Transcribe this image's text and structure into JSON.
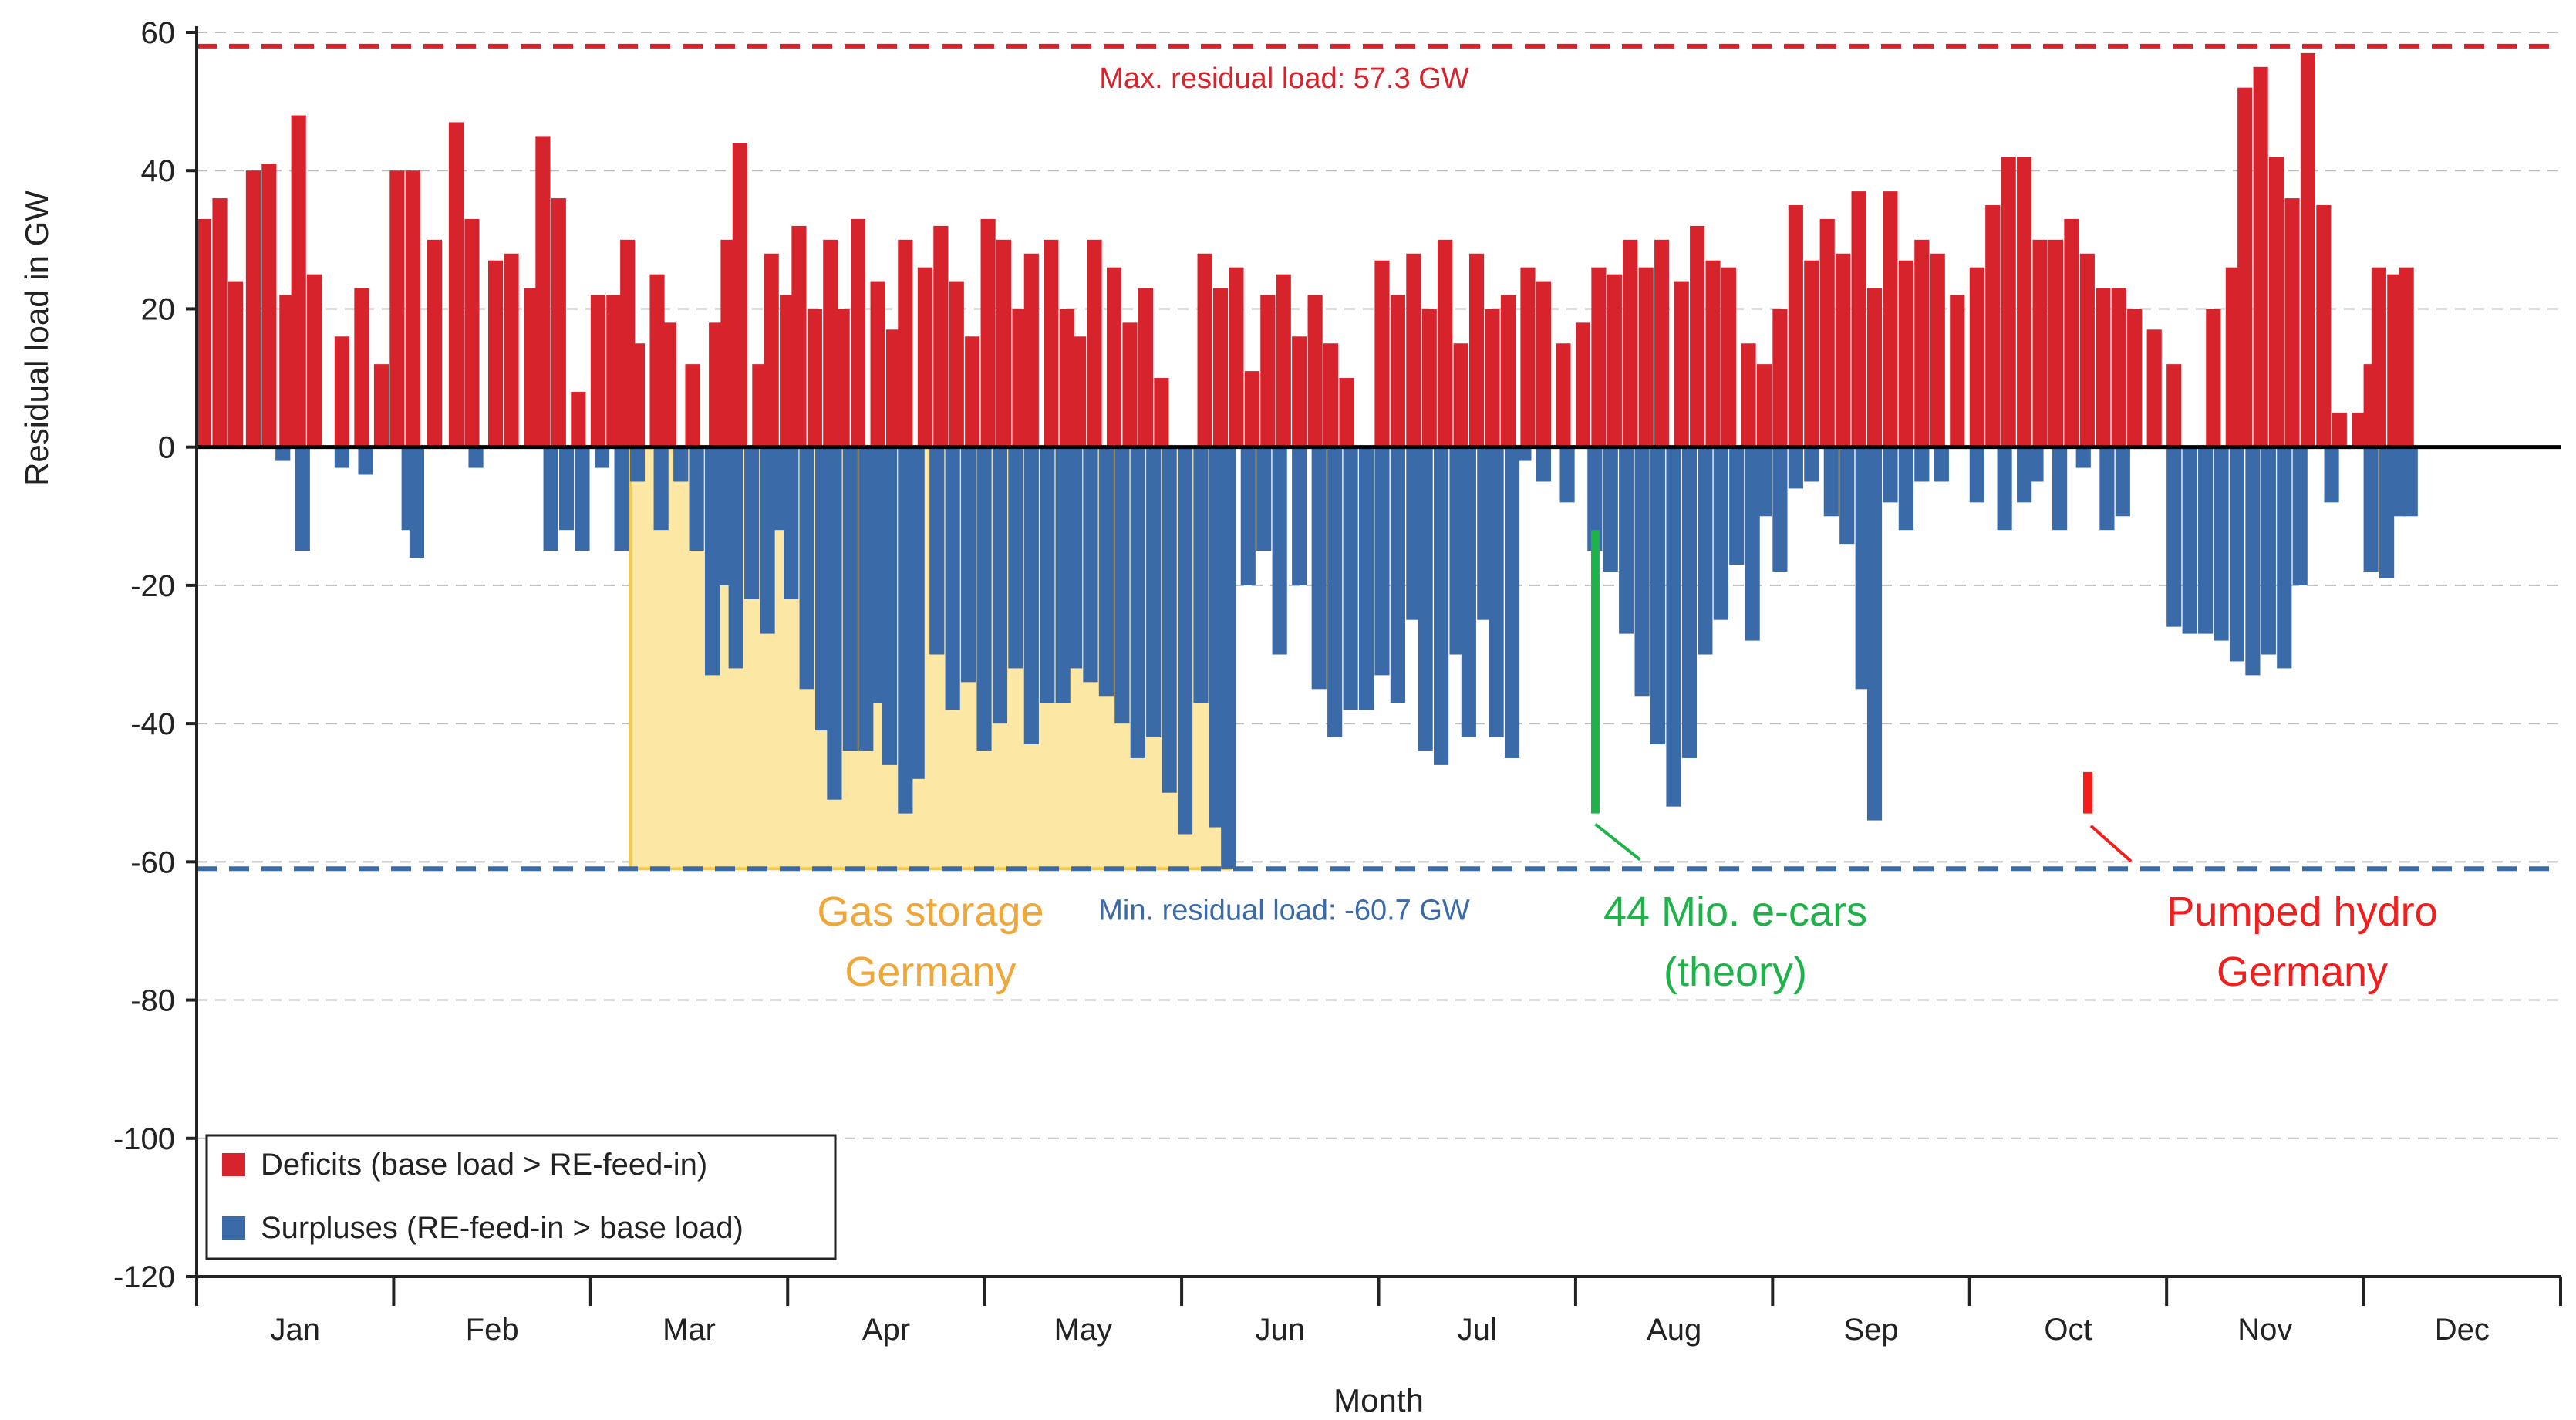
{
  "chart_data": {
    "type": "bar",
    "xlabel": "Month",
    "ylabel": "Residual load in GW",
    "ylim": [
      -120,
      60
    ],
    "yticks": [
      60,
      40,
      20,
      0,
      -20,
      -40,
      -60,
      -80,
      -100,
      -120
    ],
    "x_tick_labels": [
      "Jan",
      "Feb",
      "Mar",
      "Apr",
      "May",
      "Jun",
      "Jul",
      "Aug",
      "Sep",
      "Oct",
      "Nov",
      "Dec"
    ],
    "grid": "horizontal dashed",
    "legend_position": "bottom-left",
    "colors": {
      "deficit": "#d7232b",
      "surplus": "#3a6aa8",
      "gas": "#f7c948",
      "gas_fill": "#fce7a5",
      "ecars": "#1fb24a",
      "hydro": "#f21d1d",
      "grid": "#bbbbbb"
    },
    "legend": {
      "deficits": "Deficits (base load > RE-feed-in)",
      "surpluses": "Surpluses (RE-feed-in > base load)"
    },
    "reference_lines": {
      "max": {
        "label": "Max. residual load: 57.3 GW",
        "value": 58
      },
      "min": {
        "label": "Min. residual load: -60.7 GW",
        "value": -61
      }
    },
    "storage_annotations": {
      "gas_storage": {
        "line1": "Gas storage",
        "line2": "Germany",
        "x_start_month": 2.2,
        "x_end_month": 5.25,
        "y_min": -61,
        "y_max": 0
      },
      "ecars": {
        "line1": "44 Mio. e-cars",
        "line2": "(theory)",
        "x_month": 7.1,
        "y_min": -53,
        "y_max": -12
      },
      "pumped_hydro": {
        "line1": "Pumped hydro",
        "line2": "Germany",
        "x_month": 9.6,
        "y_min": -53,
        "y_max": -47
      }
    },
    "series": [
      {
        "name": "Deficits (base load > RE-feed-in)",
        "points": [
          [
            0.0,
            33
          ],
          [
            0.08,
            36
          ],
          [
            0.16,
            24
          ],
          [
            0.25,
            40
          ],
          [
            0.33,
            41
          ],
          [
            0.42,
            22
          ],
          [
            0.48,
            48
          ],
          [
            0.56,
            25
          ],
          [
            0.7,
            16
          ],
          [
            0.8,
            23
          ],
          [
            0.9,
            12
          ],
          [
            0.98,
            40
          ],
          [
            1.06,
            40
          ],
          [
            1.17,
            30
          ],
          [
            1.28,
            47
          ],
          [
            1.36,
            33
          ],
          [
            1.48,
            27
          ],
          [
            1.56,
            28
          ],
          [
            1.66,
            23
          ],
          [
            1.72,
            45
          ],
          [
            1.8,
            36
          ],
          [
            1.9,
            8
          ],
          [
            2.0,
            22
          ],
          [
            2.08,
            22
          ],
          [
            2.15,
            30
          ],
          [
            2.2,
            15
          ],
          [
            2.3,
            25
          ],
          [
            2.36,
            18
          ],
          [
            2.48,
            12
          ],
          [
            2.6,
            18
          ],
          [
            2.66,
            30
          ],
          [
            2.72,
            44
          ],
          [
            2.82,
            12
          ],
          [
            2.88,
            28
          ],
          [
            2.96,
            22
          ],
          [
            3.02,
            32
          ],
          [
            3.1,
            20
          ],
          [
            3.18,
            30
          ],
          [
            3.24,
            20
          ],
          [
            3.32,
            33
          ],
          [
            3.42,
            24
          ],
          [
            3.5,
            17
          ],
          [
            3.56,
            30
          ],
          [
            3.66,
            26
          ],
          [
            3.74,
            32
          ],
          [
            3.82,
            24
          ],
          [
            3.9,
            16
          ],
          [
            3.98,
            33
          ],
          [
            4.06,
            30
          ],
          [
            4.14,
            20
          ],
          [
            4.2,
            28
          ],
          [
            4.3,
            30
          ],
          [
            4.38,
            20
          ],
          [
            4.44,
            16
          ],
          [
            4.52,
            30
          ],
          [
            4.62,
            26
          ],
          [
            4.7,
            18
          ],
          [
            4.78,
            23
          ],
          [
            4.86,
            10
          ],
          [
            5.08,
            28
          ],
          [
            5.16,
            23
          ],
          [
            5.24,
            26
          ],
          [
            5.32,
            11
          ],
          [
            5.4,
            22
          ],
          [
            5.48,
            25
          ],
          [
            5.56,
            16
          ],
          [
            5.64,
            22
          ],
          [
            5.72,
            15
          ],
          [
            5.8,
            10
          ],
          [
            5.98,
            27
          ],
          [
            6.06,
            22
          ],
          [
            6.14,
            28
          ],
          [
            6.22,
            20
          ],
          [
            6.3,
            30
          ],
          [
            6.38,
            15
          ],
          [
            6.46,
            28
          ],
          [
            6.54,
            20
          ],
          [
            6.62,
            22
          ],
          [
            6.72,
            26
          ],
          [
            6.8,
            24
          ],
          [
            6.9,
            15
          ],
          [
            7.0,
            18
          ],
          [
            7.08,
            26
          ],
          [
            7.16,
            25
          ],
          [
            7.24,
            30
          ],
          [
            7.32,
            26
          ],
          [
            7.4,
            30
          ],
          [
            7.5,
            24
          ],
          [
            7.58,
            32
          ],
          [
            7.66,
            27
          ],
          [
            7.74,
            26
          ],
          [
            7.84,
            15
          ],
          [
            7.92,
            12
          ],
          [
            8.0,
            20
          ],
          [
            8.08,
            35
          ],
          [
            8.16,
            27
          ],
          [
            8.24,
            33
          ],
          [
            8.32,
            28
          ],
          [
            8.4,
            37
          ],
          [
            8.48,
            23
          ],
          [
            8.56,
            37
          ],
          [
            8.64,
            27
          ],
          [
            8.72,
            30
          ],
          [
            8.8,
            28
          ],
          [
            8.9,
            22
          ],
          [
            9.0,
            26
          ],
          [
            9.08,
            35
          ],
          [
            9.16,
            42
          ],
          [
            9.24,
            42
          ],
          [
            9.32,
            30
          ],
          [
            9.4,
            30
          ],
          [
            9.48,
            33
          ],
          [
            9.56,
            28
          ],
          [
            9.64,
            23
          ],
          [
            9.72,
            23
          ],
          [
            9.8,
            20
          ],
          [
            9.9,
            17
          ],
          [
            10.0,
            12
          ],
          [
            10.2,
            20
          ],
          [
            10.3,
            26
          ],
          [
            10.36,
            52
          ],
          [
            10.44,
            55
          ],
          [
            10.52,
            42
          ],
          [
            10.6,
            36
          ],
          [
            10.68,
            57
          ],
          [
            10.76,
            35
          ],
          [
            10.84,
            5
          ],
          [
            10.94,
            5
          ],
          [
            11.0,
            12
          ],
          [
            11.04,
            26
          ],
          [
            11.12,
            25
          ],
          [
            11.18,
            26
          ]
        ]
      },
      {
        "name": "Surpluses (RE-feed-in > base load)",
        "points": [
          [
            0.4,
            -2
          ],
          [
            0.5,
            -15
          ],
          [
            0.7,
            -3
          ],
          [
            0.82,
            -4
          ],
          [
            1.04,
            -12
          ],
          [
            1.08,
            -16
          ],
          [
            1.38,
            -3
          ],
          [
            1.76,
            -15
          ],
          [
            1.84,
            -12
          ],
          [
            1.92,
            -15
          ],
          [
            2.02,
            -3
          ],
          [
            2.12,
            -15
          ],
          [
            2.2,
            -5
          ],
          [
            2.32,
            -12
          ],
          [
            2.42,
            -5
          ],
          [
            2.5,
            -15
          ],
          [
            2.58,
            -33
          ],
          [
            2.64,
            -20
          ],
          [
            2.7,
            -32
          ],
          [
            2.78,
            -22
          ],
          [
            2.86,
            -27
          ],
          [
            2.92,
            -12
          ],
          [
            2.98,
            -22
          ],
          [
            3.06,
            -35
          ],
          [
            3.14,
            -41
          ],
          [
            3.2,
            -51
          ],
          [
            3.28,
            -44
          ],
          [
            3.36,
            -44
          ],
          [
            3.42,
            -37
          ],
          [
            3.48,
            -46
          ],
          [
            3.56,
            -53
          ],
          [
            3.62,
            -48
          ],
          [
            3.72,
            -30
          ],
          [
            3.8,
            -38
          ],
          [
            3.88,
            -34
          ],
          [
            3.96,
            -44
          ],
          [
            4.04,
            -40
          ],
          [
            4.12,
            -32
          ],
          [
            4.2,
            -43
          ],
          [
            4.28,
            -37
          ],
          [
            4.36,
            -37
          ],
          [
            4.42,
            -32
          ],
          [
            4.5,
            -34
          ],
          [
            4.58,
            -36
          ],
          [
            4.66,
            -40
          ],
          [
            4.74,
            -45
          ],
          [
            4.82,
            -42
          ],
          [
            4.9,
            -50
          ],
          [
            4.98,
            -56
          ],
          [
            5.06,
            -37
          ],
          [
            5.14,
            -55
          ],
          [
            5.2,
            -61
          ],
          [
            5.3,
            -20
          ],
          [
            5.38,
            -15
          ],
          [
            5.46,
            -30
          ],
          [
            5.56,
            -20
          ],
          [
            5.66,
            -35
          ],
          [
            5.74,
            -42
          ],
          [
            5.82,
            -38
          ],
          [
            5.9,
            -38
          ],
          [
            5.98,
            -33
          ],
          [
            6.06,
            -37
          ],
          [
            6.14,
            -25
          ],
          [
            6.2,
            -44
          ],
          [
            6.28,
            -46
          ],
          [
            6.36,
            -30
          ],
          [
            6.42,
            -42
          ],
          [
            6.5,
            -25
          ],
          [
            6.56,
            -42
          ],
          [
            6.64,
            -45
          ],
          [
            6.7,
            -2
          ],
          [
            6.8,
            -5
          ],
          [
            6.92,
            -8
          ],
          [
            7.06,
            -15
          ],
          [
            7.14,
            -18
          ],
          [
            7.22,
            -27
          ],
          [
            7.3,
            -36
          ],
          [
            7.38,
            -43
          ],
          [
            7.46,
            -52
          ],
          [
            7.54,
            -45
          ],
          [
            7.62,
            -30
          ],
          [
            7.7,
            -25
          ],
          [
            7.78,
            -17
          ],
          [
            7.86,
            -28
          ],
          [
            7.92,
            -10
          ],
          [
            8.0,
            -18
          ],
          [
            8.08,
            -6
          ],
          [
            8.16,
            -5
          ],
          [
            8.26,
            -10
          ],
          [
            8.34,
            -14
          ],
          [
            8.42,
            -35
          ],
          [
            8.48,
            -54
          ],
          [
            8.56,
            -8
          ],
          [
            8.64,
            -12
          ],
          [
            8.72,
            -5
          ],
          [
            8.82,
            -5
          ],
          [
            9.0,
            -8
          ],
          [
            9.14,
            -12
          ],
          [
            9.24,
            -8
          ],
          [
            9.3,
            -5
          ],
          [
            9.42,
            -12
          ],
          [
            9.54,
            -3
          ],
          [
            9.66,
            -12
          ],
          [
            9.74,
            -10
          ],
          [
            10.0,
            -26
          ],
          [
            10.08,
            -27
          ],
          [
            10.16,
            -27
          ],
          [
            10.24,
            -28
          ],
          [
            10.32,
            -31
          ],
          [
            10.4,
            -33
          ],
          [
            10.48,
            -30
          ],
          [
            10.56,
            -32
          ],
          [
            10.64,
            -20
          ],
          [
            10.8,
            -8
          ],
          [
            11.0,
            -18
          ],
          [
            11.08,
            -19
          ],
          [
            11.14,
            -10
          ],
          [
            11.2,
            -10
          ]
        ]
      }
    ]
  }
}
